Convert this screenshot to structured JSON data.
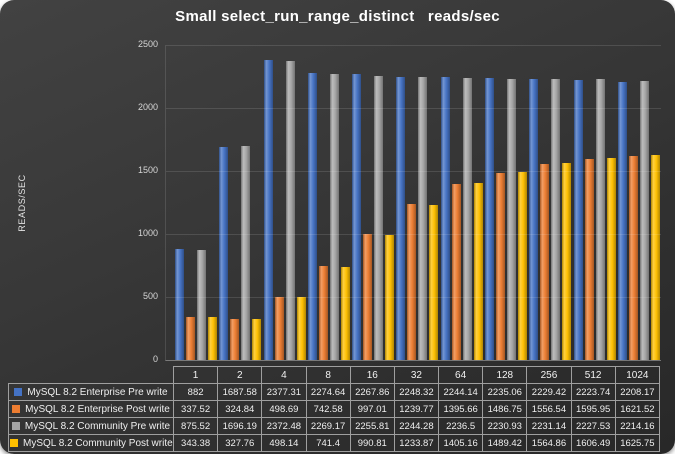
{
  "chart_data": {
    "type": "bar",
    "title": "Small select_run_range_distinct   reads/sec",
    "ylabel": "READS/SEC",
    "xlabel": "",
    "categories": [
      "1",
      "2",
      "4",
      "8",
      "16",
      "32",
      "64",
      "128",
      "256",
      "512",
      "1024"
    ],
    "series": [
      {
        "name": "MySQL 8.2 Enterprise Pre write",
        "color": "#4472C4",
        "values": [
          882,
          1687.58,
          2377.31,
          2274.64,
          2267.86,
          2248.32,
          2244.14,
          2235.06,
          2229.42,
          2223.74,
          2208.17
        ]
      },
      {
        "name": "MySQL 8.2 Enterprise Post write",
        "color": "#ED7D31",
        "values": [
          337.52,
          324.84,
          498.69,
          742.58,
          997.01,
          1239.77,
          1395.66,
          1486.75,
          1556.54,
          1595.95,
          1621.52
        ]
      },
      {
        "name": "MySQL 8.2 Community Pre write",
        "color": "#A5A5A5",
        "values": [
          875.52,
          1696.19,
          2372.48,
          2269.17,
          2255.81,
          2244.28,
          2236.5,
          2230.93,
          2231.14,
          2227.53,
          2214.16
        ]
      },
      {
        "name": "MySQL 8.2 Community Post write",
        "color": "#FFC000",
        "values": [
          343.38,
          327.76,
          498.14,
          741.4,
          990.81,
          1233.87,
          1405.16,
          1489.42,
          1564.86,
          1606.49,
          1625.75
        ]
      }
    ],
    "y_ticks": [
      0,
      500,
      1000,
      1500,
      2000,
      2500
    ],
    "ylim": [
      0,
      2500
    ],
    "grid": true,
    "legend_position": "bottom-table"
  },
  "style": {
    "background": "#333333",
    "text_color": "#ffffff",
    "grid_color": "rgba(255,255,255,0.12)",
    "table_border_color": "#9f9f9f"
  }
}
